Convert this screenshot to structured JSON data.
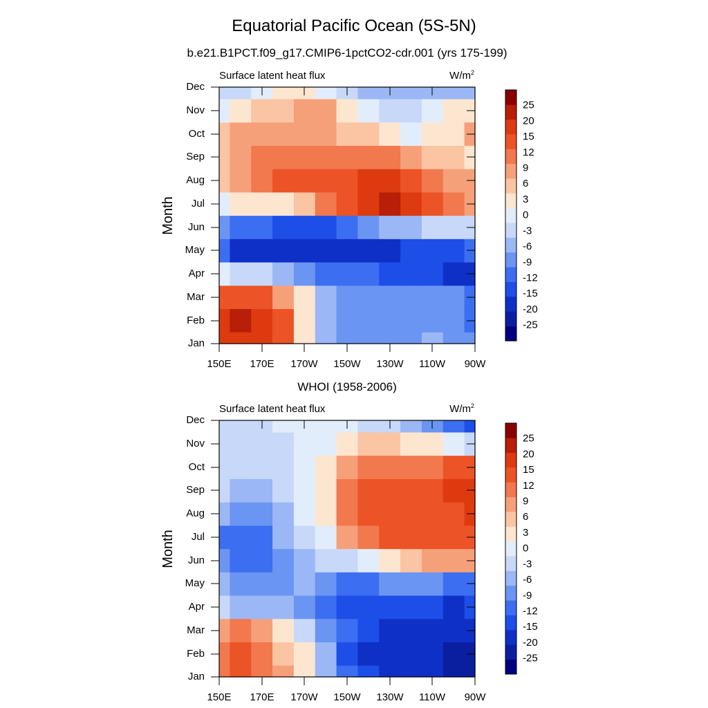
{
  "figure": {
    "title": "Equatorial Pacific Ocean (5S-5N)"
  },
  "chart_data": [
    {
      "type": "heatmap",
      "title": "b.e21.B1PCT.f09_g17.CMIP6-1pctCO2-cdr.001 (yrs 175-199)",
      "left_label": "Surface latent heat flux",
      "unit_label": "W/m",
      "unit_sup": "2",
      "ylabel": "Month",
      "x_tick_labels": [
        "150E",
        "170E",
        "170W",
        "150W",
        "130W",
        "110W",
        "90W"
      ],
      "x_ticks_deg_east": [
        150,
        170,
        190,
        210,
        230,
        250,
        270
      ],
      "y_tick_labels": [
        "Jan",
        "Feb",
        "Mar",
        "Apr",
        "May",
        "Jun",
        "Jul",
        "Aug",
        "Sep",
        "Oct",
        "Nov",
        "Dec"
      ],
      "x": [
        150,
        160,
        170,
        180,
        190,
        200,
        210,
        220,
        230,
        240,
        250,
        260,
        270
      ],
      "z": [
        [
          20,
          24,
          22,
          18,
          3,
          -6,
          -9,
          -8,
          -8,
          -7,
          -6,
          -7,
          -9
        ],
        [
          21,
          25,
          21,
          15,
          5,
          -5,
          -9,
          -9,
          -9,
          -8,
          -7,
          -8,
          -10
        ],
        [
          16,
          18,
          15,
          10,
          3,
          -4,
          -7,
          -8,
          -9,
          -9,
          -8,
          -9,
          -11
        ],
        [
          1,
          -1,
          -3,
          -5,
          -8,
          -10,
          -11,
          -12,
          -14,
          -15,
          -15,
          -16,
          -16
        ],
        [
          -12,
          -16,
          -20,
          -20,
          -20,
          -19,
          -18,
          -17,
          -16,
          -15,
          -14,
          -13,
          -12
        ],
        [
          -9,
          -10,
          -12,
          -13,
          -14,
          -15,
          -12,
          -9,
          -6,
          -4,
          -3,
          -2,
          -2
        ],
        [
          1,
          3,
          4,
          5,
          8,
          12,
          16,
          20,
          25,
          22,
          15,
          12,
          10
        ],
        [
          6,
          9,
          12,
          15,
          17,
          18,
          19,
          20,
          21,
          19,
          14,
          11,
          9
        ],
        [
          8,
          10,
          12,
          12,
          12,
          14,
          14,
          13,
          12,
          9,
          8,
          6,
          5
        ],
        [
          8,
          10,
          10,
          9,
          9,
          9,
          8,
          6,
          3,
          0,
          3,
          5,
          9
        ],
        [
          0,
          3,
          6,
          6,
          9,
          9,
          5,
          2,
          -2,
          -3,
          1,
          3,
          4
        ],
        [
          -3,
          -3,
          0,
          3,
          3,
          0,
          -3,
          -6,
          -6,
          -6,
          -4,
          -4,
          -4
        ]
      ],
      "colorbar_levels": [
        -25,
        -20,
        -15,
        -12,
        -9,
        -6,
        -3,
        0,
        3,
        6,
        9,
        12,
        15,
        20,
        25
      ]
    },
    {
      "type": "heatmap",
      "title": "WHOI (1958-2006)",
      "left_label": "Surface latent heat flux",
      "unit_label": "W/m",
      "unit_sup": "2",
      "ylabel": "Month",
      "x_tick_labels": [
        "150E",
        "170E",
        "170W",
        "150W",
        "130W",
        "110W",
        "90W"
      ],
      "x_ticks_deg_east": [
        150,
        170,
        190,
        210,
        230,
        250,
        270
      ],
      "y_tick_labels": [
        "Jan",
        "Feb",
        "Mar",
        "Apr",
        "May",
        "Jun",
        "Jul",
        "Aug",
        "Sep",
        "Oct",
        "Nov",
        "Dec"
      ],
      "x": [
        150,
        160,
        170,
        180,
        190,
        200,
        210,
        220,
        230,
        240,
        250,
        260,
        270
      ],
      "z": [
        [
          12,
          15,
          12,
          9,
          3,
          -6,
          -12,
          -15,
          -18,
          -18,
          -20,
          -22,
          -24
        ],
        [
          14,
          15,
          12,
          8,
          3,
          -6,
          -13,
          -16,
          -18,
          -19,
          -20,
          -21,
          -22
        ],
        [
          10,
          12,
          9,
          3,
          -3,
          -7,
          -12,
          -15,
          -16,
          -17,
          -18,
          -19,
          -18
        ],
        [
          -3,
          -4,
          -4,
          -6,
          -8,
          -10,
          -13,
          -14,
          -15,
          -15,
          -15,
          -16,
          -15
        ],
        [
          -6,
          -8,
          -9,
          -8,
          -6,
          -9,
          -12,
          -10,
          -9,
          -8,
          -9,
          -10,
          -11
        ],
        [
          -9,
          -10,
          -11,
          -8,
          -4,
          -3,
          -2,
          0,
          3,
          6,
          9,
          10,
          11
        ],
        [
          -10,
          -12,
          -10,
          -6,
          -2,
          2,
          9,
          14,
          15,
          17,
          18,
          19,
          19
        ],
        [
          -6,
          -9,
          -8,
          -4,
          0,
          4,
          12,
          18,
          19,
          17,
          17,
          19,
          20
        ],
        [
          -3,
          -4,
          -4,
          -2,
          0,
          5,
          13,
          17,
          16,
          15,
          17,
          20,
          22
        ],
        [
          -2,
          -3,
          -3,
          -2,
          0,
          4,
          9,
          12,
          12,
          12,
          13,
          15,
          16
        ],
        [
          -1,
          -2,
          -2,
          -1,
          0,
          2,
          4,
          6,
          6,
          5,
          3,
          0,
          -3
        ],
        [
          -1,
          -1,
          -1,
          0,
          1,
          1,
          0,
          -1,
          -2,
          -4,
          -7,
          -10,
          -14
        ]
      ],
      "colorbar_levels": [
        -25,
        -20,
        -15,
        -12,
        -9,
        -6,
        -3,
        0,
        3,
        6,
        9,
        12,
        15,
        20,
        25
      ]
    }
  ],
  "colors": {
    "palette": [
      "#000080",
      "#0a1fa0",
      "#0f30c6",
      "#1d4ee8",
      "#3c6ef2",
      "#6b95f2",
      "#9bb7f5",
      "#c8d8f8",
      "#e2edfb",
      "#fde6d0",
      "#fbc4a2",
      "#f6a07a",
      "#f2784e",
      "#ec5326",
      "#de3a10",
      "#b81e08",
      "#8a0000"
    ],
    "axes": "#000000"
  }
}
